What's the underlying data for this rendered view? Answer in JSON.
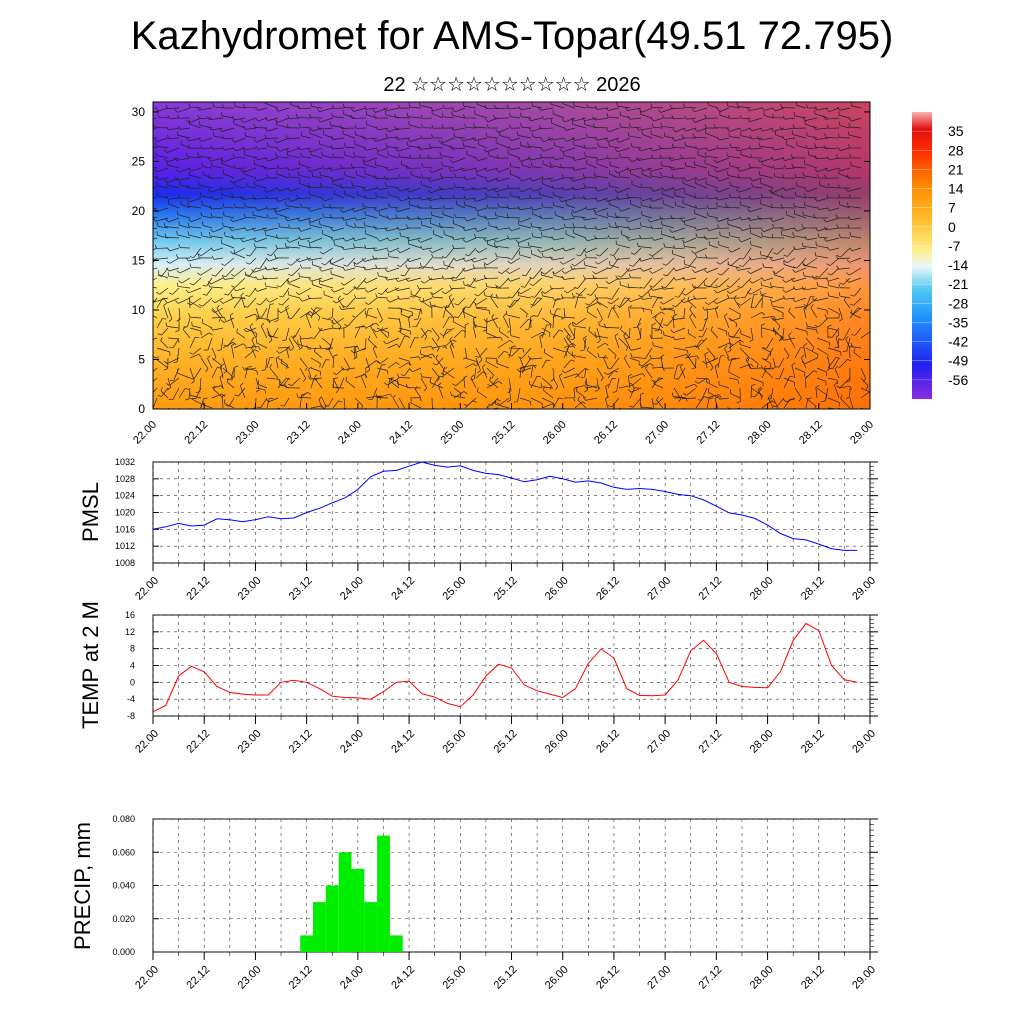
{
  "page": {
    "title": "Kazhydromet for AMS-Topar(49.51 72.795)",
    "subtitle": "22 ☆☆☆☆☆☆☆☆☆☆ 2026"
  },
  "colors": {
    "pmsl_line": "#0000ff",
    "temp_line": "#ff0000",
    "precip_bar": "#00ee00"
  },
  "chart_data": [
    {
      "id": "cross_section",
      "type": "heatmap",
      "title": "",
      "x_tick_labels": [
        "22.00",
        "22.12",
        "23.00",
        "23.12",
        "24.00",
        "24.12",
        "25.00",
        "25.12",
        "26.00",
        "26.12",
        "27.00",
        "27.12",
        "28.00",
        "28.12",
        "29.00"
      ],
      "y_ticks": [
        0,
        5,
        10,
        15,
        20,
        25,
        30
      ],
      "ylim": [
        0,
        31
      ],
      "colorbar": {
        "labels": [
          "35",
          "28",
          "21",
          "14",
          "7",
          "0",
          "-7",
          "-14",
          "-21",
          "-28",
          "-35",
          "-42",
          "-49",
          "-56"
        ],
        "range": [
          -63,
          42
        ]
      },
      "overlay": "wind barbs"
    },
    {
      "id": "pmsl",
      "type": "line",
      "ylabel": "PMSL",
      "ylim": [
        1008,
        1032
      ],
      "y_ticks": [
        "1032",
        "1028",
        "1024",
        "1020",
        "1016",
        "1012",
        "1008"
      ],
      "x_tick_labels": [
        "22.00",
        "22.12",
        "23.00",
        "23.12",
        "24.00",
        "24.12",
        "25.00",
        "25.12",
        "26.00",
        "26.12",
        "27.00",
        "27.12",
        "28.00",
        "28.12",
        "29.00"
      ],
      "x_hours": [
        0,
        3,
        6,
        9,
        12,
        15,
        18,
        21,
        24,
        27,
        30,
        33,
        36,
        39,
        42,
        45,
        48,
        51,
        54,
        57,
        60,
        63,
        66,
        69,
        72,
        75,
        78,
        81,
        84,
        87,
        90,
        93,
        96,
        99,
        102,
        105,
        108,
        111,
        114,
        117,
        120,
        123,
        126,
        129,
        132,
        135,
        138,
        141,
        144,
        147,
        150,
        153,
        156,
        159,
        162,
        165
      ],
      "values": [
        1016,
        1016.6,
        1017.4,
        1016.8,
        1017,
        1018.5,
        1018.3,
        1017.8,
        1018.3,
        1019,
        1018.5,
        1018.7,
        1020,
        1021,
        1022.3,
        1023.5,
        1025.5,
        1028.5,
        1029.8,
        1030,
        1031,
        1032,
        1031.2,
        1030.8,
        1031.1,
        1030,
        1029.3,
        1029,
        1028.2,
        1027.3,
        1027.8,
        1028.6,
        1028,
        1027.2,
        1027.5,
        1027,
        1026,
        1025.5,
        1025.7,
        1025.5,
        1025,
        1024.3,
        1024,
        1023,
        1021.5,
        1019.9,
        1019.4,
        1018.6,
        1017,
        1015,
        1013.8,
        1013.5,
        1012.5,
        1011.4,
        1011,
        1011
      ]
    },
    {
      "id": "temp2m",
      "type": "line",
      "ylabel": "TEMP at 2 M",
      "ylim": [
        -8,
        16
      ],
      "y_ticks": [
        "16",
        "12",
        "8",
        "4",
        "0",
        "-4",
        "-8"
      ],
      "x_tick_labels": [
        "22.00",
        "22.12",
        "23.00",
        "23.12",
        "24.00",
        "24.12",
        "25.00",
        "25.12",
        "26.00",
        "26.12",
        "27.00",
        "27.12",
        "28.00",
        "28.12",
        "29.00"
      ],
      "x_hours": [
        0,
        3,
        6,
        9,
        12,
        15,
        18,
        21,
        24,
        27,
        30,
        33,
        36,
        39,
        42,
        45,
        48,
        51,
        54,
        57,
        60,
        63,
        66,
        69,
        72,
        75,
        78,
        81,
        84,
        87,
        90,
        93,
        96,
        99,
        102,
        105,
        108,
        111,
        114,
        117,
        120,
        123,
        126,
        129,
        132,
        135,
        138,
        141,
        144,
        147,
        150,
        153,
        156,
        159,
        162,
        165
      ],
      "values": [
        -7,
        -5.5,
        1.5,
        3.8,
        2.5,
        -1,
        -2.4,
        -2.8,
        -3,
        -3,
        0,
        0.5,
        0,
        -1.5,
        -3.3,
        -3.6,
        -3.7,
        -4,
        -2.2,
        0,
        0.3,
        -2.7,
        -3.5,
        -5,
        -5.8,
        -3,
        1.5,
        4.3,
        3.4,
        -0.6,
        -2,
        -2.8,
        -3.6,
        -1.5,
        4.5,
        7.9,
        5.8,
        -1.5,
        -3.1,
        -3.2,
        -3,
        0.5,
        7.5,
        10,
        6.8,
        0,
        -1,
        -1.2,
        -1.3,
        2.5,
        10,
        14,
        12.3,
        4,
        0.6,
        0
      ]
    },
    {
      "id": "precip",
      "type": "bar",
      "ylabel": "PRECIP, mm",
      "ylim": [
        0,
        0.08
      ],
      "y_ticks": [
        "0.080",
        "0.060",
        "0.040",
        "0.020",
        "0.000"
      ],
      "x_tick_labels": [
        "22.00",
        "22.12",
        "23.00",
        "23.12",
        "24.00",
        "24.12",
        "25.00",
        "25.12",
        "26.00",
        "26.12",
        "27.00",
        "27.12",
        "28.00",
        "28.12",
        "29.00"
      ],
      "bar_x_hours": [
        36,
        39,
        42,
        45,
        48,
        51,
        54,
        57,
        60
      ],
      "values": [
        0.01,
        0.03,
        0.04,
        0.06,
        0.05,
        0.03,
        0.07,
        0.01,
        0.0
      ]
    }
  ]
}
